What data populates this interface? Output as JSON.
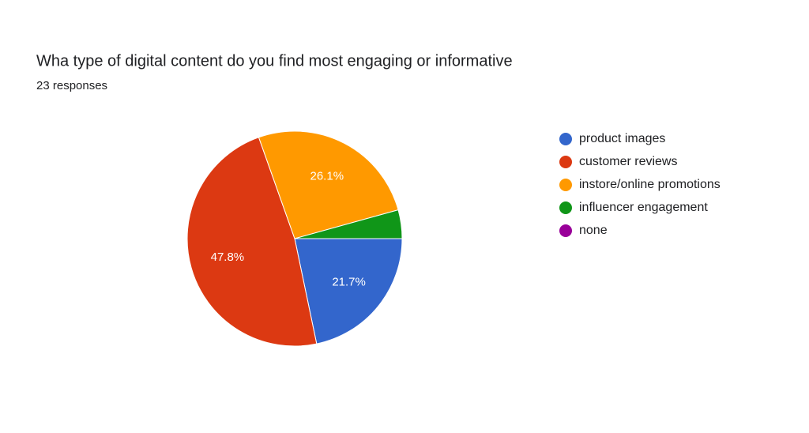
{
  "chart_data": {
    "type": "pie",
    "title": "Wha type of digital content do you find most engaging or informative",
    "subtitle": "23 responses",
    "categories": [
      "product images",
      "customer reviews",
      "instore/online promotions",
      "influencer engagement",
      "none"
    ],
    "values": [
      21.7,
      47.8,
      26.1,
      4.3,
      0
    ],
    "value_labels": [
      "21.7%",
      "47.8%",
      "26.1%",
      null,
      null
    ],
    "colors": [
      "#3366cc",
      "#dc3912",
      "#ff9900",
      "#109618",
      "#990099"
    ],
    "legend": "right"
  }
}
